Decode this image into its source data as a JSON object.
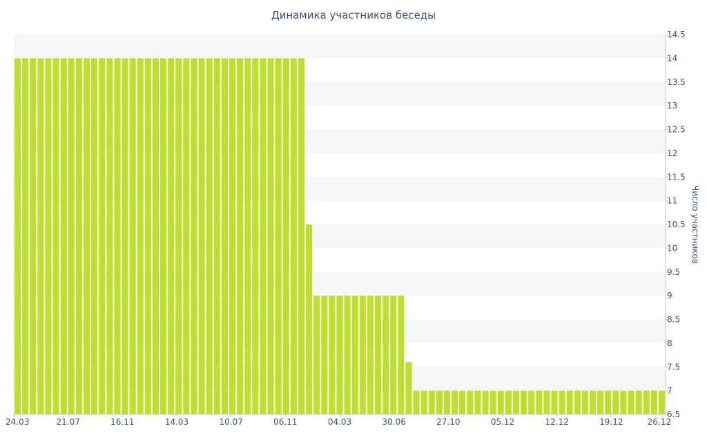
{
  "chart_data": {
    "type": "bar",
    "title": "Динамика участников беседы",
    "xlabel": "",
    "ylabel": "Число участников",
    "ylim": [
      6.5,
      14.5
    ],
    "y_ticks": [
      "6.5",
      "7",
      "7.5",
      "8",
      "8.5",
      "9",
      "9.5",
      "10",
      "10.5",
      "11",
      "11.5",
      "12",
      "12.5",
      "13",
      "13.5",
      "14",
      "14.5"
    ],
    "x_tick_labels": [
      "24.03",
      "21.07",
      "16.11",
      "14.03",
      "10.07",
      "06.11",
      "04.03",
      "30.06",
      "27.10",
      "05.12",
      "12.12",
      "19.12",
      "26.12"
    ],
    "grid": "horizontal alternating bands",
    "colors": {
      "bar": "#bfdf2e",
      "band": "#f6f6f6",
      "text": "#3f5189"
    },
    "values": [
      14,
      14,
      14,
      14,
      14,
      14,
      14,
      14,
      14,
      14,
      14,
      14,
      14,
      14,
      14,
      14,
      14,
      14,
      14,
      14,
      14,
      14,
      14,
      14,
      14,
      14,
      14,
      14,
      14,
      14,
      14,
      14,
      14,
      14,
      14,
      14,
      14,
      14,
      10.5,
      9,
      9,
      9,
      9,
      9,
      9,
      9,
      9,
      9,
      9,
      9,
      9,
      7.6,
      7,
      7,
      7,
      7,
      7,
      7,
      7,
      7,
      7,
      7,
      7,
      7,
      7,
      7,
      7,
      7,
      7,
      7,
      7,
      7,
      7,
      7,
      7,
      7,
      7,
      7,
      7,
      7,
      7,
      7,
      7,
      7,
      7
    ]
  }
}
